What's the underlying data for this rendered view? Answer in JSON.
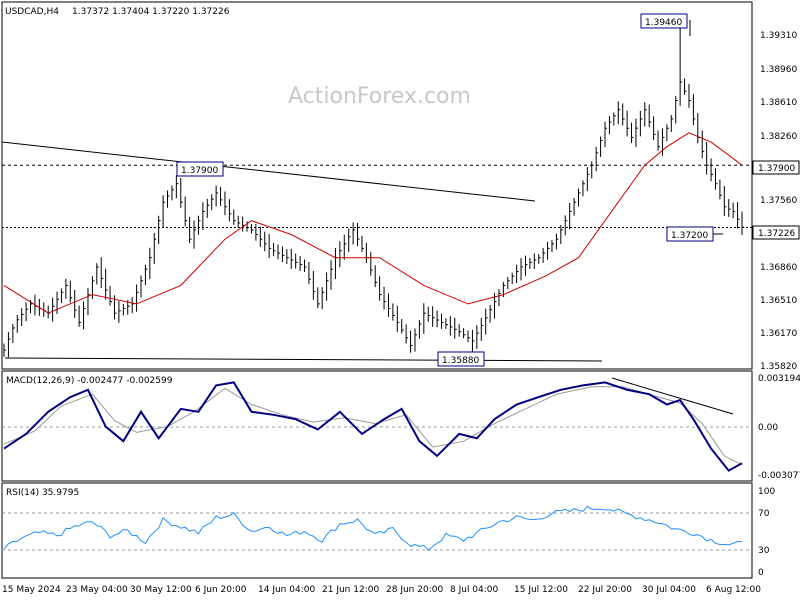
{
  "header": {
    "symbol": "USDCAD,H4",
    "ohlc": "1.37372 1.37404 1.37220 1.37226"
  },
  "watermark": "ActionForex.com",
  "price_axis": {
    "ticks": [
      "1.39310",
      "1.38960",
      "1.38610",
      "1.38260",
      "1.37560",
      "1.36860",
      "1.36510",
      "1.36170",
      "1.35820"
    ],
    "current_label": "1.37226",
    "level_label": "1.37900"
  },
  "annotations": {
    "high": "1.39460",
    "low": "1.35880",
    "resist": "1.37900",
    "recent_low": "1.37200"
  },
  "macd": {
    "label": "MACD(12,26,9)  -0.002477  -0.002599",
    "ticks": [
      "0.003194",
      "0.00",
      "-0.003077"
    ]
  },
  "rsi": {
    "label": "RSI(14)  35.9795",
    "ticks": [
      "100",
      "70",
      "30",
      "0"
    ]
  },
  "time_axis": {
    "labels": [
      "15 May 2024",
      "23 May 04:00",
      "30 May 12:00",
      "6 Jun 20:00",
      "14 Jun 04:00",
      "21 Jun 12:00",
      "28 Jun 20:00",
      "8 Jul 04:00",
      "15 Jul 12:00",
      "22 Jul 20:00",
      "30 Jul 04:00",
      "6 Aug 12:00"
    ]
  },
  "colors": {
    "candle": "#000000",
    "ma": "#cc0000",
    "macd": "#000080",
    "signal": "#999999",
    "rsi": "#1e90ff",
    "border": "#000000",
    "label_box": "#000080"
  },
  "chart_data": {
    "type": "line",
    "title": "USDCAD,H4",
    "price": {
      "x": [
        "15 May 2024",
        "23 May 04:00",
        "30 May 12:00",
        "6 Jun 20:00",
        "14 Jun 04:00",
        "21 Jun 12:00",
        "28 Jun 20:00",
        "8 Jul 04:00",
        "15 Jul 12:00",
        "22 Jul 20:00",
        "30 Jul 04:00",
        "6 Aug 12:00"
      ],
      "close_points": [
        [
          0,
          1.359
        ],
        [
          5,
          1.362
        ],
        [
          12,
          1.364
        ],
        [
          20,
          1.363
        ],
        [
          28,
          1.366
        ],
        [
          34,
          1.362
        ],
        [
          42,
          1.368
        ],
        [
          50,
          1.363
        ],
        [
          58,
          1.364
        ],
        [
          66,
          1.369
        ],
        [
          72,
          1.375
        ],
        [
          78,
          1.377
        ],
        [
          84,
          1.371
        ],
        [
          90,
          1.374
        ],
        [
          96,
          1.376
        ],
        [
          104,
          1.373
        ],
        [
          112,
          1.372
        ],
        [
          120,
          1.37
        ],
        [
          128,
          1.369
        ],
        [
          136,
          1.368
        ],
        [
          142,
          1.364
        ],
        [
          150,
          1.369
        ],
        [
          158,
          1.372
        ],
        [
          164,
          1.369
        ],
        [
          170,
          1.365
        ],
        [
          178,
          1.362
        ],
        [
          184,
          1.3595
        ],
        [
          190,
          1.363
        ],
        [
          198,
          1.362
        ],
        [
          206,
          1.361
        ],
        [
          212,
          1.36
        ],
        [
          218,
          1.3625
        ],
        [
          226,
          1.366
        ],
        [
          234,
          1.368
        ],
        [
          242,
          1.369
        ],
        [
          250,
          1.371
        ],
        [
          258,
          1.375
        ],
        [
          266,
          1.379
        ],
        [
          272,
          1.383
        ],
        [
          278,
          1.385
        ],
        [
          284,
          1.382
        ],
        [
          290,
          1.385
        ],
        [
          296,
          1.381
        ],
        [
          302,
          1.384
        ],
        [
          306,
          1.388
        ],
        [
          310,
          1.386
        ],
        [
          314,
          1.382
        ],
        [
          318,
          1.379
        ],
        [
          322,
          1.377
        ],
        [
          326,
          1.3745
        ],
        [
          330,
          1.374
        ],
        [
          334,
          1.3723
        ]
      ],
      "ma_points": [
        [
          0,
          1.366
        ],
        [
          20,
          1.363
        ],
        [
          40,
          1.365
        ],
        [
          60,
          1.364
        ],
        [
          80,
          1.366
        ],
        [
          100,
          1.371
        ],
        [
          112,
          1.373
        ],
        [
          130,
          1.3715
        ],
        [
          150,
          1.369
        ],
        [
          170,
          1.369
        ],
        [
          190,
          1.366
        ],
        [
          210,
          1.364
        ],
        [
          226,
          1.365
        ],
        [
          245,
          1.367
        ],
        [
          260,
          1.369
        ],
        [
          275,
          1.374
        ],
        [
          290,
          1.379
        ],
        [
          300,
          1.381
        ],
        [
          310,
          1.3825
        ],
        [
          320,
          1.3815
        ],
        [
          334,
          1.379
        ]
      ],
      "high": 1.3946,
      "low": 1.3588,
      "resistance": 1.379,
      "recent_low": 1.372,
      "current": 1.37226,
      "ylim": [
        1.3575,
        1.396
      ]
    },
    "macd": {
      "line_points": [
        [
          0,
          -0.0015
        ],
        [
          10,
          -0.0005
        ],
        [
          20,
          0.001
        ],
        [
          30,
          0.002
        ],
        [
          38,
          0.0025
        ],
        [
          46,
          0.0
        ],
        [
          54,
          -0.001
        ],
        [
          62,
          0.001
        ],
        [
          70,
          -0.0008
        ],
        [
          80,
          0.0012
        ],
        [
          88,
          0.001
        ],
        [
          96,
          0.0028
        ],
        [
          104,
          0.003
        ],
        [
          112,
          0.001
        ],
        [
          122,
          0.0008
        ],
        [
          132,
          0.0005
        ],
        [
          142,
          -0.0002
        ],
        [
          152,
          0.001
        ],
        [
          162,
          -0.0005
        ],
        [
          172,
          0.0005
        ],
        [
          180,
          0.0012
        ],
        [
          188,
          -0.001
        ],
        [
          196,
          -0.002
        ],
        [
          206,
          -0.0005
        ],
        [
          214,
          -0.0008
        ],
        [
          222,
          0.0005
        ],
        [
          232,
          0.0015
        ],
        [
          242,
          0.002
        ],
        [
          252,
          0.0025
        ],
        [
          262,
          0.0028
        ],
        [
          272,
          0.003
        ],
        [
          282,
          0.0025
        ],
        [
          292,
          0.0022
        ],
        [
          300,
          0.0015
        ],
        [
          306,
          0.0018
        ],
        [
          312,
          0.0005
        ],
        [
          320,
          -0.0015
        ],
        [
          328,
          -0.003
        ],
        [
          334,
          -0.0025
        ]
      ],
      "signal_points": [
        [
          0,
          -0.0012
        ],
        [
          14,
          -0.0003
        ],
        [
          26,
          0.0014
        ],
        [
          40,
          0.0022
        ],
        [
          50,
          0.0004
        ],
        [
          60,
          -0.0004
        ],
        [
          74,
          0.0
        ],
        [
          86,
          0.001
        ],
        [
          100,
          0.0026
        ],
        [
          112,
          0.0015
        ],
        [
          126,
          0.0008
        ],
        [
          140,
          0.0003
        ],
        [
          154,
          0.0006
        ],
        [
          168,
          0.0002
        ],
        [
          182,
          0.0008
        ],
        [
          194,
          -0.0014
        ],
        [
          208,
          -0.001
        ],
        [
          222,
          0.0002
        ],
        [
          236,
          0.0012
        ],
        [
          250,
          0.0022
        ],
        [
          266,
          0.0027
        ],
        [
          280,
          0.0027
        ],
        [
          294,
          0.0021
        ],
        [
          306,
          0.0016
        ],
        [
          316,
          0.0002
        ],
        [
          326,
          -0.002
        ],
        [
          334,
          -0.0026
        ]
      ],
      "ylim": [
        -0.0035,
        0.0033
      ]
    },
    "rsi": {
      "points": [
        [
          0,
          30
        ],
        [
          8,
          42
        ],
        [
          16,
          48
        ],
        [
          24,
          45
        ],
        [
          32,
          55
        ],
        [
          40,
          60
        ],
        [
          48,
          45
        ],
        [
          56,
          50
        ],
        [
          64,
          38
        ],
        [
          72,
          62
        ],
        [
          80,
          55
        ],
        [
          88,
          48
        ],
        [
          96,
          65
        ],
        [
          104,
          68
        ],
        [
          112,
          50
        ],
        [
          120,
          55
        ],
        [
          128,
          45
        ],
        [
          136,
          50
        ],
        [
          144,
          40
        ],
        [
          152,
          58
        ],
        [
          160,
          62
        ],
        [
          168,
          45
        ],
        [
          176,
          52
        ],
        [
          184,
          35
        ],
        [
          192,
          30
        ],
        [
          200,
          45
        ],
        [
          208,
          40
        ],
        [
          216,
          50
        ],
        [
          224,
          60
        ],
        [
          232,
          65
        ],
        [
          240,
          62
        ],
        [
          248,
          70
        ],
        [
          256,
          72
        ],
        [
          264,
          75
        ],
        [
          272,
          76
        ],
        [
          280,
          70
        ],
        [
          288,
          65
        ],
        [
          296,
          60
        ],
        [
          304,
          52
        ],
        [
          312,
          48
        ],
        [
          320,
          40
        ],
        [
          328,
          35
        ],
        [
          334,
          36
        ]
      ],
      "ylim": [
        0,
        100
      ]
    }
  }
}
